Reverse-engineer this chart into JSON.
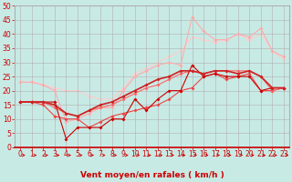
{
  "xlabel": "Vent moyen/en rafales ( km/h )",
  "xlim": [
    -0.5,
    23.5
  ],
  "ylim": [
    0,
    50
  ],
  "xticks": [
    0,
    1,
    2,
    3,
    4,
    5,
    6,
    7,
    8,
    9,
    10,
    11,
    12,
    13,
    14,
    15,
    16,
    17,
    18,
    19,
    20,
    21,
    22,
    23
  ],
  "yticks": [
    0,
    5,
    10,
    15,
    20,
    25,
    30,
    35,
    40,
    45,
    50
  ],
  "bg_color": "#c8eae5",
  "grid_color": "#b0b0b0",
  "lines": [
    {
      "x": [
        0,
        1,
        2,
        3,
        4,
        5,
        6,
        7,
        8,
        9,
        10,
        11,
        12,
        13,
        14,
        15,
        16,
        17,
        18,
        19,
        20,
        21,
        22,
        23
      ],
      "y": [
        16,
        16,
        16,
        16,
        3,
        7,
        7,
        7,
        10,
        10,
        17,
        13,
        17,
        20,
        20,
        29,
        25,
        26,
        25,
        25,
        25,
        20,
        21,
        21
      ],
      "color": "#cc0000",
      "linewidth": 0.8,
      "marker": "D",
      "markersize": 2.0,
      "zorder": 4
    },
    {
      "x": [
        0,
        1,
        2,
        3,
        4,
        5,
        6,
        7,
        8,
        9,
        10,
        11,
        12,
        13,
        14,
        15,
        16,
        17,
        18,
        19,
        20,
        21,
        22,
        23
      ],
      "y": [
        16,
        16,
        15,
        11,
        10,
        10,
        7,
        9,
        11,
        12,
        13,
        14,
        15,
        17,
        20,
        21,
        25,
        26,
        24,
        25,
        26,
        20,
        20,
        21
      ],
      "color": "#ee4444",
      "linewidth": 0.8,
      "marker": "D",
      "markersize": 2.0,
      "zorder": 3
    },
    {
      "x": [
        0,
        1,
        2,
        3,
        4,
        5,
        6,
        7,
        8,
        9,
        10,
        11,
        12,
        13,
        14,
        15,
        16,
        17,
        18,
        19,
        20,
        21,
        22,
        23
      ],
      "y": [
        23,
        23,
        22,
        20,
        9,
        10,
        12,
        14,
        14,
        20,
        25,
        27,
        29,
        30,
        29,
        46,
        41,
        38,
        38,
        40,
        39,
        42,
        34,
        32
      ],
      "color": "#ffaaaa",
      "linewidth": 0.8,
      "marker": "D",
      "markersize": 2.0,
      "zorder": 2
    },
    {
      "x": [
        0,
        1,
        2,
        3,
        4,
        5,
        6,
        7,
        8,
        9,
        10,
        11,
        12,
        13,
        14,
        15,
        16,
        17,
        18,
        19,
        20,
        21,
        22,
        23
      ],
      "y": [
        23,
        23,
        22,
        21,
        20,
        20,
        18,
        17,
        17,
        21,
        26,
        28,
        30,
        32,
        34,
        39,
        38,
        37,
        38,
        40,
        38,
        40,
        34,
        31
      ],
      "color": "#ffcccc",
      "linewidth": 0.8,
      "marker": "D",
      "markersize": 2.0,
      "zorder": 1
    },
    {
      "x": [
        0,
        1,
        2,
        3,
        4,
        5,
        6,
        7,
        8,
        9,
        10,
        11,
        12,
        13,
        14,
        15,
        16,
        17,
        18,
        19,
        20,
        21,
        22,
        23
      ],
      "y": [
        16,
        16,
        16,
        15,
        12,
        11,
        13,
        15,
        16,
        18,
        20,
        22,
        24,
        25,
        27,
        27,
        26,
        27,
        27,
        26,
        27,
        25,
        21,
        21
      ],
      "color": "#cc2222",
      "linewidth": 1.2,
      "marker": "D",
      "markersize": 2.0,
      "zorder": 5
    },
    {
      "x": [
        0,
        1,
        2,
        3,
        4,
        5,
        6,
        7,
        8,
        9,
        10,
        11,
        12,
        13,
        14,
        15,
        16,
        17,
        18,
        19,
        20,
        21,
        22,
        23
      ],
      "y": [
        16,
        16,
        16,
        14,
        12,
        11,
        13,
        14,
        15,
        17,
        19,
        21,
        22,
        24,
        26,
        27,
        26,
        27,
        27,
        27,
        27,
        25,
        20,
        21
      ],
      "color": "#ff6666",
      "linewidth": 0.8,
      "marker": "D",
      "markersize": 2.0,
      "zorder": 3
    }
  ],
  "arrow_color": "#cc0000",
  "xlabel_color": "#cc0000",
  "xlabel_fontsize": 6.5,
  "tick_color": "#cc0000",
  "tick_fontsize": 5.5
}
